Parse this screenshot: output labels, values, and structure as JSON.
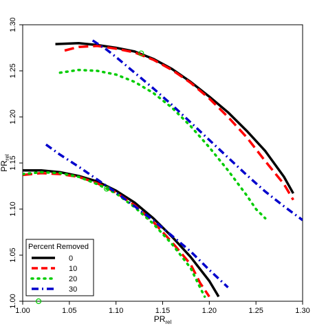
{
  "chart_data": {
    "type": "line",
    "title": "",
    "xlabel_main": "PR",
    "xlabel_sub": "rel",
    "ylabel_main": "PR",
    "ylabel_sub": "rel",
    "xlim": [
      1.0,
      1.3
    ],
    "ylim": [
      1.0,
      1.3
    ],
    "xticks": [
      "1.00",
      "1.05",
      "1.10",
      "1.15",
      "1.20",
      "1.25",
      "1.30"
    ],
    "yticks": [
      "1.00",
      "1.05",
      "1.10",
      "1.15",
      "1.20",
      "1.25",
      "1.30"
    ],
    "grid": false,
    "legend": {
      "title": "Percent Removed",
      "position": "bottom-left",
      "entries": [
        "0",
        "10",
        "20",
        "30"
      ]
    },
    "series": [
      {
        "name": "0",
        "group": "upper",
        "color": "#000000",
        "dash": "solid",
        "points": [
          [
            1.035,
            1.279
          ],
          [
            1.06,
            1.28
          ],
          [
            1.08,
            1.278
          ],
          [
            1.1,
            1.275
          ],
          [
            1.12,
            1.271
          ],
          [
            1.14,
            1.263
          ],
          [
            1.16,
            1.252
          ],
          [
            1.18,
            1.238
          ],
          [
            1.2,
            1.222
          ],
          [
            1.22,
            1.205
          ],
          [
            1.24,
            1.185
          ],
          [
            1.26,
            1.163
          ],
          [
            1.28,
            1.135
          ],
          [
            1.29,
            1.117
          ]
        ]
      },
      {
        "name": "10",
        "group": "upper",
        "color": "#ff0000",
        "dash": "long",
        "points": [
          [
            1.045,
            1.272
          ],
          [
            1.06,
            1.276
          ],
          [
            1.08,
            1.277
          ],
          [
            1.1,
            1.274
          ],
          [
            1.12,
            1.27
          ],
          [
            1.14,
            1.262
          ],
          [
            1.16,
            1.251
          ],
          [
            1.18,
            1.237
          ],
          [
            1.2,
            1.22
          ],
          [
            1.22,
            1.2
          ],
          [
            1.24,
            1.178
          ],
          [
            1.26,
            1.152
          ],
          [
            1.28,
            1.127
          ],
          [
            1.29,
            1.11
          ]
        ]
      },
      {
        "name": "20",
        "group": "upper",
        "color": "#00cc00",
        "dash": "dot",
        "points": [
          [
            1.04,
            1.248
          ],
          [
            1.06,
            1.251
          ],
          [
            1.08,
            1.25
          ],
          [
            1.1,
            1.246
          ],
          [
            1.12,
            1.238
          ],
          [
            1.14,
            1.226
          ],
          [
            1.16,
            1.21
          ],
          [
            1.18,
            1.19
          ],
          [
            1.2,
            1.167
          ],
          [
            1.22,
            1.142
          ],
          [
            1.24,
            1.115
          ],
          [
            1.25,
            1.1
          ],
          [
            1.26,
            1.09
          ]
        ]
      },
      {
        "name": "30",
        "group": "upper",
        "color": "#0000cc",
        "dash": "dashdot",
        "points": [
          [
            1.075,
            1.283
          ],
          [
            1.09,
            1.273
          ],
          [
            1.1,
            1.265
          ],
          [
            1.12,
            1.248
          ],
          [
            1.14,
            1.231
          ],
          [
            1.16,
            1.213
          ],
          [
            1.18,
            1.194
          ],
          [
            1.2,
            1.175
          ],
          [
            1.22,
            1.156
          ],
          [
            1.24,
            1.137
          ],
          [
            1.26,
            1.119
          ],
          [
            1.28,
            1.103
          ],
          [
            1.3,
            1.088
          ]
        ]
      },
      {
        "name": "0",
        "group": "lower",
        "color": "#000000",
        "dash": "solid",
        "points": [
          [
            1.0,
            1.142
          ],
          [
            1.02,
            1.142
          ],
          [
            1.04,
            1.14
          ],
          [
            1.06,
            1.136
          ],
          [
            1.08,
            1.13
          ],
          [
            1.1,
            1.12
          ],
          [
            1.12,
            1.107
          ],
          [
            1.14,
            1.09
          ],
          [
            1.16,
            1.07
          ],
          [
            1.18,
            1.048
          ],
          [
            1.2,
            1.022
          ],
          [
            1.21,
            1.005
          ]
        ]
      },
      {
        "name": "10",
        "group": "lower",
        "color": "#ff0000",
        "dash": "long",
        "points": [
          [
            1.0,
            1.137
          ],
          [
            1.02,
            1.139
          ],
          [
            1.04,
            1.138
          ],
          [
            1.06,
            1.135
          ],
          [
            1.08,
            1.128
          ],
          [
            1.1,
            1.118
          ],
          [
            1.12,
            1.104
          ],
          [
            1.14,
            1.086
          ],
          [
            1.16,
            1.064
          ],
          [
            1.18,
            1.04
          ],
          [
            1.19,
            1.02
          ],
          [
            1.2,
            1.005
          ]
        ]
      },
      {
        "name": "20",
        "group": "lower",
        "color": "#00cc00",
        "dash": "dot",
        "points": [
          [
            1.0,
            1.138
          ],
          [
            1.02,
            1.14
          ],
          [
            1.04,
            1.139
          ],
          [
            1.06,
            1.135
          ],
          [
            1.08,
            1.127
          ],
          [
            1.1,
            1.117
          ],
          [
            1.12,
            1.102
          ],
          [
            1.14,
            1.084
          ],
          [
            1.16,
            1.062
          ],
          [
            1.18,
            1.036
          ],
          [
            1.19,
            1.015
          ],
          [
            1.195,
            1.005
          ]
        ]
      },
      {
        "name": "30",
        "group": "lower",
        "color": "#0000cc",
        "dash": "dashdot",
        "points": [
          [
            1.025,
            1.17
          ],
          [
            1.04,
            1.159
          ],
          [
            1.06,
            1.146
          ],
          [
            1.08,
            1.132
          ],
          [
            1.1,
            1.118
          ],
          [
            1.12,
            1.103
          ],
          [
            1.14,
            1.088
          ],
          [
            1.16,
            1.071
          ],
          [
            1.18,
            1.054
          ],
          [
            1.2,
            1.034
          ],
          [
            1.22,
            1.015
          ]
        ]
      }
    ],
    "markers": [
      {
        "x": 1.127,
        "y": 1.269,
        "color": "#00cc00"
      },
      {
        "x": 1.09,
        "y": 1.122,
        "color": "#00cc00"
      },
      {
        "x": 1.017,
        "y": 1.0,
        "color": "#00cc00"
      }
    ]
  }
}
